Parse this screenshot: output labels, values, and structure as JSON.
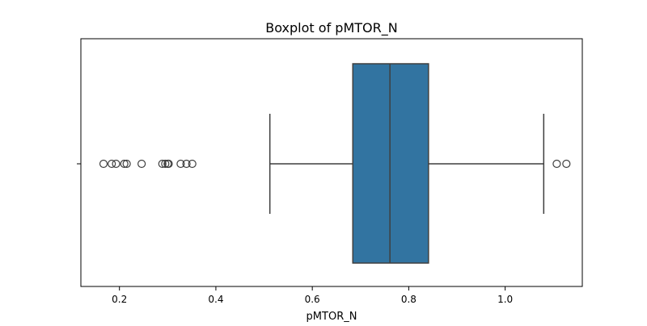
{
  "chart_data": {
    "type": "boxplot",
    "orientation": "horizontal",
    "title": "Boxplot of pMTOR_N",
    "xlabel": "pMTOR_N",
    "ylabel": "",
    "xlim": [
      0.12,
      1.16
    ],
    "xticks": [
      0.2,
      0.4,
      0.6,
      0.8,
      1.0
    ],
    "xtick_labels": [
      "0.2",
      "0.4",
      "0.6",
      "0.8",
      "1.0"
    ],
    "grid": false,
    "box": {
      "whisker_low": 0.512,
      "q1": 0.684,
      "median": 0.761,
      "q3": 0.841,
      "whisker_high": 1.08,
      "outliers": [
        0.167,
        0.184,
        0.193,
        0.21,
        0.215,
        0.246,
        0.289,
        0.295,
        0.3,
        0.302,
        0.327,
        0.339,
        0.351,
        1.107,
        1.127
      ]
    },
    "colors": {
      "box_fill": "#3274a1",
      "line": "#3f3f3f",
      "axes": "#000000"
    }
  }
}
